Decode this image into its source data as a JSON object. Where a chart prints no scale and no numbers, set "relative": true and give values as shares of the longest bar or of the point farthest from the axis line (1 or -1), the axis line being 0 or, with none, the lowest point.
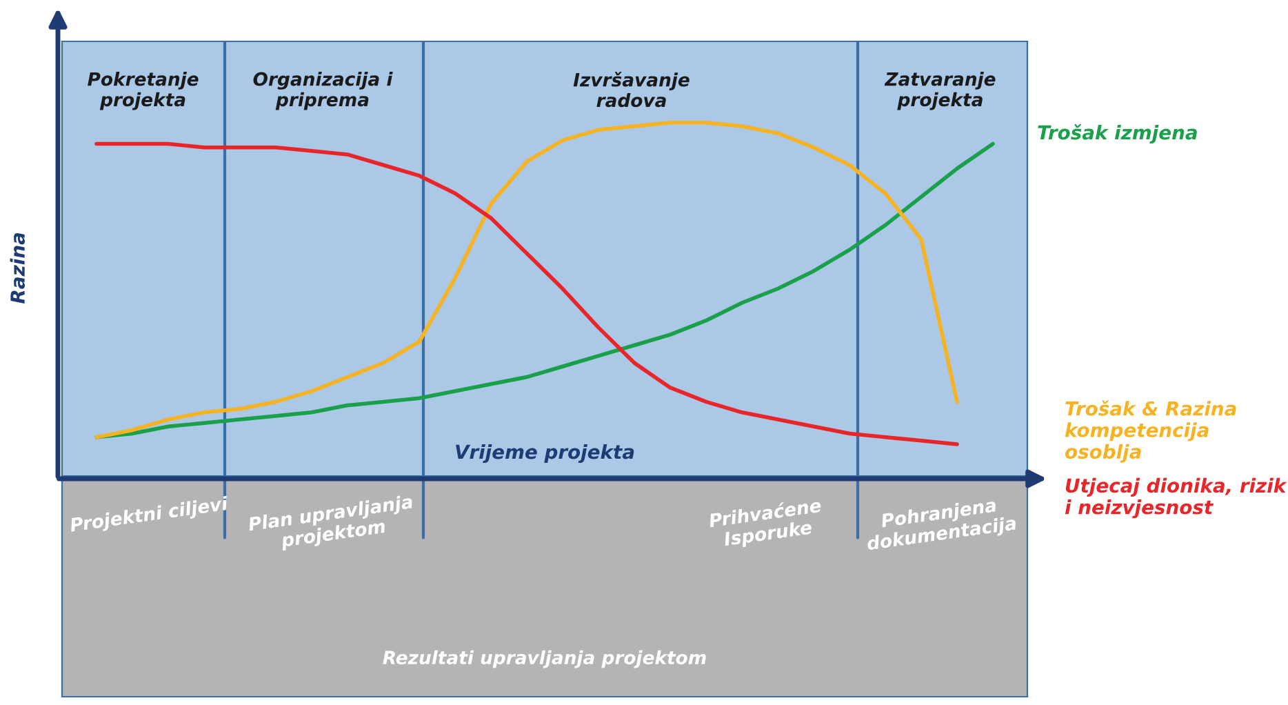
{
  "chart_data": {
    "type": "line",
    "relative": true,
    "xlabel": "Vrijeme projekta",
    "ylabel": "Razina",
    "legend": "right",
    "marker": "none",
    "line_style": "solid",
    "categories": [
      null,
      null,
      null,
      null,
      null,
      null,
      null,
      null,
      null,
      null,
      null,
      null,
      null,
      null,
      null,
      null,
      null,
      null,
      null,
      null,
      null,
      null,
      null,
      null,
      null,
      null
    ],
    "series": [
      {
        "name": "Trošak izmjena",
        "color": "#1aa04a",
        "values": [
          0.11,
          0.12,
          0.14,
          0.15,
          0.16,
          0.17,
          0.18,
          0.2,
          0.21,
          0.22,
          0.24,
          0.26,
          0.28,
          0.31,
          0.34,
          0.37,
          0.4,
          0.44,
          0.49,
          0.53,
          0.58,
          0.64,
          0.71,
          0.79,
          0.87,
          0.94
        ]
      },
      {
        "name": "Trošak & Razina kompetencija osoblja",
        "color": "#f5b324",
        "values": [
          0.11,
          0.13,
          0.16,
          0.18,
          0.19,
          0.21,
          0.24,
          0.28,
          0.32,
          0.38,
          0.56,
          0.77,
          0.89,
          0.95,
          0.98,
          0.99,
          1,
          1,
          0.99,
          0.97,
          0.93,
          0.88,
          0.8,
          0.67,
          0.21,
          null
        ]
      },
      {
        "name": "Utjecaj dionika, rizik i neizvjesnost",
        "color": "#e8262a",
        "values": [
          0.94,
          0.94,
          0.94,
          0.93,
          0.93,
          0.93,
          0.92,
          0.91,
          0.88,
          0.85,
          0.8,
          0.73,
          0.63,
          0.53,
          0.42,
          0.32,
          0.25,
          0.21,
          0.18,
          0.16,
          0.14,
          0.12,
          0.11,
          0.1,
          0.09,
          null
        ]
      }
    ],
    "annotations": [
      "Pokretanje\nprojekta",
      "Organizacija i\npriprema",
      "Izvršavanje\nradova",
      "Zatvaranje\nprojekta",
      "Projektni ciljevi",
      "Plan upravljanja\nprojektom",
      "Prihvaćene\nIsporuke",
      "Pohranjena\ndokumentacija",
      "Rezultati upravljanja projektom"
    ]
  }
}
